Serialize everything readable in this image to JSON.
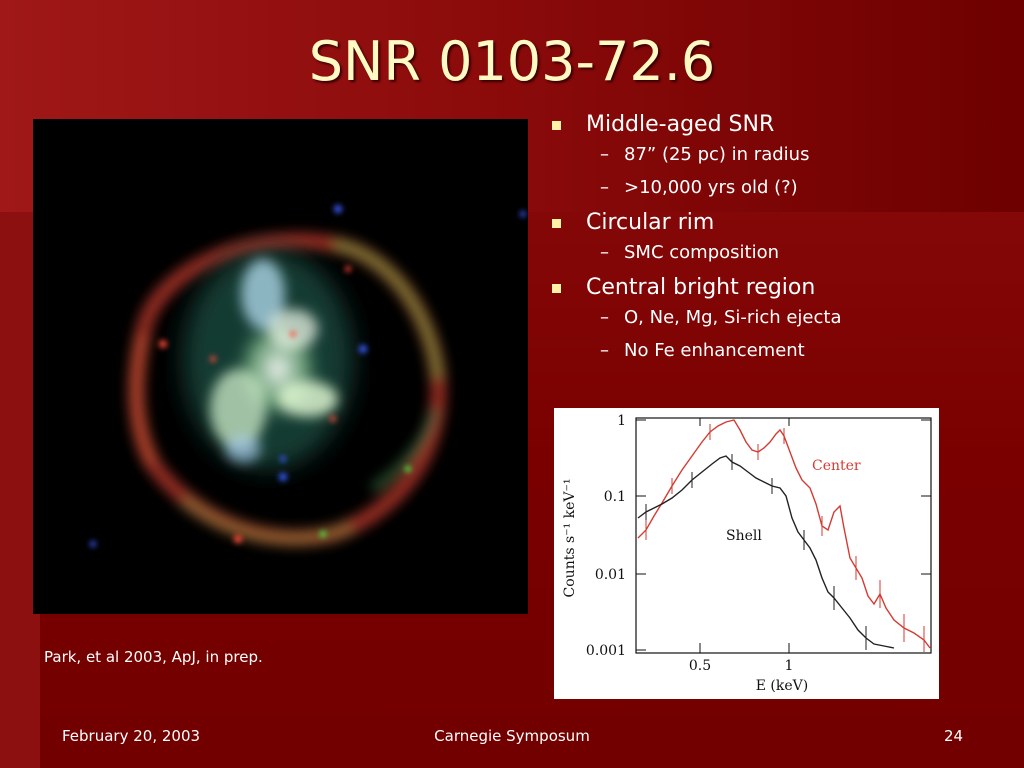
{
  "slide": {
    "title": "SNR 0103-72.6",
    "caption": "Park, et al 2003, ApJ, in prep.",
    "bullets": [
      {
        "text": "Middle-aged SNR",
        "subs": [
          "87” (25 pc) in radius",
          ">10,000 yrs old (?)"
        ]
      },
      {
        "text": "Circular rim",
        "subs": [
          "SMC composition"
        ]
      },
      {
        "text": "Central bright region",
        "subs": [
          "O, Ne, Mg, Si-rich ejecta",
          "No Fe enhancement"
        ]
      }
    ]
  },
  "footer": {
    "date": "February 20, 2003",
    "event": "Carnegie Symposum",
    "page": "24"
  },
  "spectrum_plot": {
    "ylabel": "Counts s⁻¹ keV⁻¹",
    "xlabel": "E (keV)",
    "y_ticks": [
      "1",
      "0.1",
      "0.01",
      "0.001"
    ],
    "x_ticks": [
      "0.5",
      "1"
    ],
    "series_labels": {
      "center": "Center",
      "shell": "Shell"
    },
    "colors": {
      "center": "#d43b32",
      "shell": "#222222"
    }
  },
  "colors": {
    "background": "#7a0000",
    "title": "#fff9c4",
    "bullet_marker": "#fff2a8"
  }
}
